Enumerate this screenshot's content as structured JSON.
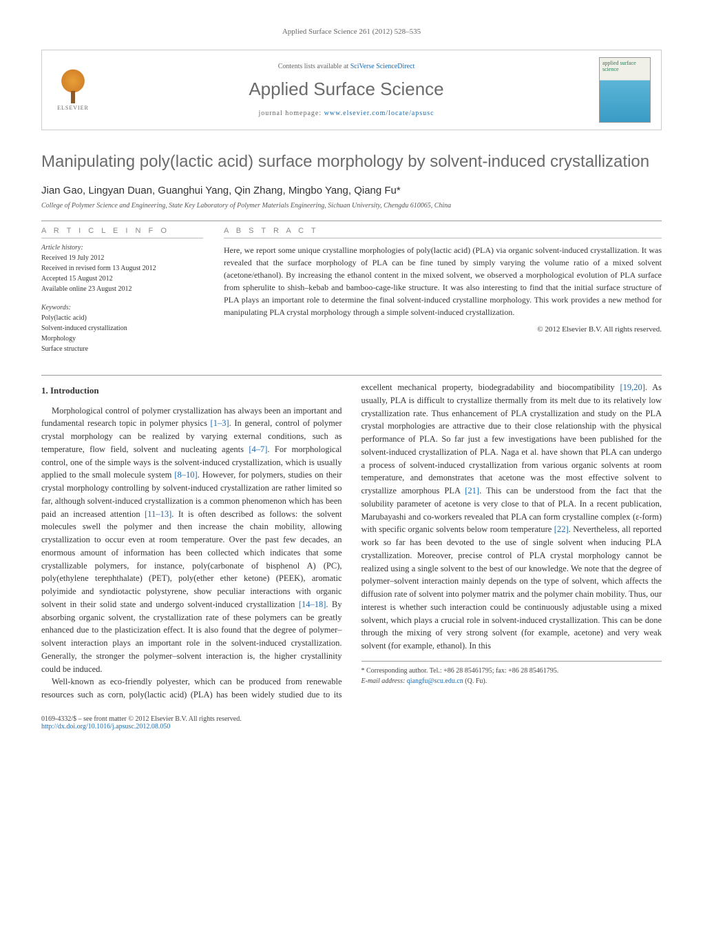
{
  "running_header": "Applied Surface Science 261 (2012) 528–535",
  "header": {
    "contents_prefix": "Contents lists available at ",
    "contents_link": "SciVerse ScienceDirect",
    "journal_name": "Applied Surface Science",
    "homepage_prefix": "journal homepage: ",
    "homepage_link": "www.elsevier.com/locate/apsusc",
    "elsevier_label": "ELSEVIER",
    "cover_title": "applied surface science"
  },
  "title": "Manipulating poly(lactic acid) surface morphology by solvent-induced crystallization",
  "authors": "Jian Gao, Lingyan Duan, Guanghui Yang, Qin Zhang, Mingbo Yang, Qiang Fu",
  "corr_symbol": "*",
  "affiliation": "College of Polymer Science and Engineering, State Key Laboratory of Polymer Materials Engineering, Sichuan University, Chengdu 610065, China",
  "info": {
    "heading": "a r t i c l e   i n f o",
    "history_label": "Article history:",
    "history": [
      "Received 19 July 2012",
      "Received in revised form 13 August 2012",
      "Accepted 15 August 2012",
      "Available online 23 August 2012"
    ],
    "keywords_label": "Keywords:",
    "keywords": [
      "Poly(lactic acid)",
      "Solvent-induced crystallization",
      "Morphology",
      "Surface structure"
    ]
  },
  "abstract": {
    "heading": "a b s t r a c t",
    "text": "Here, we report some unique crystalline morphologies of poly(lactic acid) (PLA) via organic solvent-induced crystallization. It was revealed that the surface morphology of PLA can be fine tuned by simply varying the volume ratio of a mixed solvent (acetone/ethanol). By increasing the ethanol content in the mixed solvent, we observed a morphological evolution of PLA surface from spherulite to shish–kebab and bamboo-cage-like structure. It was also interesting to find that the initial surface structure of PLA plays an important role to determine the final solvent-induced crystalline morphology. This work provides a new method for manipulating PLA crystal morphology through a simple solvent-induced crystallization.",
    "copyright": "© 2012 Elsevier B.V. All rights reserved."
  },
  "section1": {
    "heading": "1. Introduction",
    "p1_a": "Morphological control of polymer crystallization has always been an important and fundamental research topic in polymer physics ",
    "r1": "[1–3]",
    "p1_b": ". In general, control of polymer crystal morphology can be realized by varying external conditions, such as temperature, flow field, solvent and nucleating agents ",
    "r2": "[4–7]",
    "p1_c": ". For morphological control, one of the simple ways is the solvent-induced crystallization, which is usually applied to the small molecule system ",
    "r3": "[8–10]",
    "p1_d": ". However, for polymers, studies on their crystal morphology controlling by solvent-induced crystallization are rather limited so far, although solvent-induced crystallization is a common phenomenon which has been paid an increased attention ",
    "r4": "[11–13]",
    "p1_e": ". It is often described as follows: the solvent molecules swell the polymer and then increase the chain mobility, allowing crystallization to occur even at room temperature. Over the past few decades, an enormous amount of information has been collected which indicates that some crystallizable polymers, for instance, poly(carbonate of bisphenol A) (PC), poly(ethylene terephthalate) (PET), poly(ether ether ketone) (PEEK), aromatic polyimide and syndiotactic polystyrene, show peculiar interactions with organic solvent in their solid state and undergo solvent-induced crystallization ",
    "r5": "[14–18]",
    "p1_f": ". By absorbing organic solvent, the crystallization rate of these polymers can be greatly enhanced due to the plasticization effect. It is also found that the degree of polymer–solvent interaction plays an important role in the solvent-induced crystallization. Generally, the stronger the polymer–solvent interaction is, the higher crystallinity could be induced.",
    "p2_a": "Well-known as eco-friendly polyester, which can be produced from renewable resources such as corn, poly(lactic acid) (PLA) has been widely studied due to its excellent mechanical property, biodegradability and biocompatibility ",
    "r6": "[19,20]",
    "p2_b": ". As usually, PLA is difficult to crystallize thermally from its melt due to its relatively low crystallization rate. Thus enhancement of PLA crystallization and study on the PLA crystal morphologies are attractive due to their close relationship with the physical performance of PLA. So far just a few investigations have been published for the solvent-induced crystallization of PLA. Naga et al. have shown that PLA can undergo a process of solvent-induced crystallization from various organic solvents at room temperature, and demonstrates that acetone was the most effective solvent to crystallize amorphous PLA ",
    "r7": "[21]",
    "p2_c": ". This can be understood from the fact that the solubility parameter of acetone is very close to that of PLA. In a recent publication, Marubayashi and co-workers revealed that PLA can form crystalline complex (ε-form) with specific organic solvents below room temperature ",
    "r8": "[22]",
    "p2_d": ". Nevertheless, all reported work so far has been devoted to the use of single solvent when inducing PLA crystallization. Moreover, precise control of PLA crystal morphology cannot be realized using a single solvent to the best of our knowledge. We note that the degree of polymer–solvent interaction mainly depends on the type of solvent, which affects the diffusion rate of solvent into polymer matrix and the polymer chain mobility. Thus, our interest is whether such interaction could be continuously adjustable using a mixed solvent, which plays a crucial role in solvent-induced crystallization. This can be done through the mixing of very strong solvent (for example, acetone) and very weak solvent (for example, ethanol). In this"
  },
  "footnote": {
    "corr": "* Corresponding author. Tel.: +86 28 85461795; fax: +86 28 85461795.",
    "email_label": "E-mail address: ",
    "email": "qiangfu@scu.edu.cn",
    "email_suffix": " (Q. Fu)."
  },
  "footer": {
    "issn": "0169-4332/$ – see front matter © 2012 Elsevier B.V. All rights reserved.",
    "doi_label": "http://dx.doi.org/",
    "doi": "10.1016/j.apsusc.2012.08.050"
  }
}
